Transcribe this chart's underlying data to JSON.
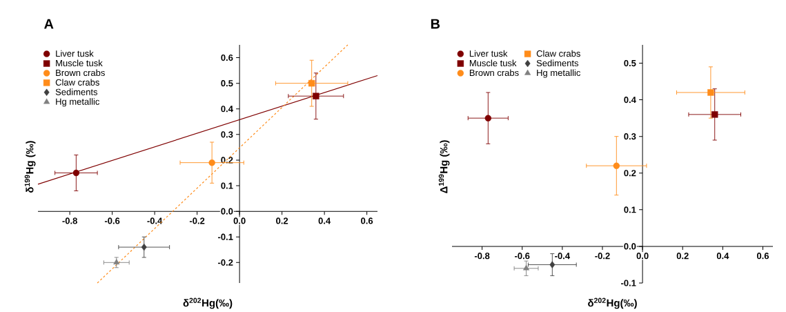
{
  "chart_data": [
    {
      "type": "scatter",
      "title": "A",
      "xlabel": "δ$^{202}$Hg(‰)",
      "ylabel": "δ$^{199}$Hg (‰)",
      "xlim": [
        -0.95,
        0.65
      ],
      "ylim": [
        -0.28,
        0.65
      ],
      "xticks": [
        -0.8,
        -0.6,
        -0.4,
        -0.2,
        {
          "value": 0,
          "label": "0.0"
        },
        0.2,
        0.4,
        0.6
      ],
      "yticks": [
        -0.2,
        -0.1,
        {
          "value": 0,
          "label": "0.0"
        },
        0.1,
        0.2,
        0.3,
        0.4,
        0.5,
        0.6
      ],
      "legend": "top left",
      "series": [
        {
          "type": "line",
          "x": [
            -0.95,
            0.65
          ],
          "values": [
            0.106,
            0.53
          ],
          "color": "#7f0000",
          "line_style": "solid",
          "marker": "none"
        },
        {
          "type": "line",
          "x": [
            -0.67,
            0.51
          ],
          "values": [
            -0.28,
            0.65
          ],
          "color": "#ff8c1a",
          "line_style": "dashed",
          "marker": "none"
        },
        {
          "name": "Liver tusk",
          "color": "#7f0000",
          "marker": "circle",
          "x": [
            -0.77
          ],
          "values": [
            0.15
          ],
          "xerrors": [
            0.1
          ],
          "errors": [
            0.07
          ]
        },
        {
          "name": "Muscle tusk",
          "color": "#7f0000",
          "marker": "square",
          "x": [
            0.36
          ],
          "values": [
            0.45
          ],
          "xerrors": [
            0.13
          ],
          "errors": [
            0.09
          ]
        },
        {
          "name": "Brown crabs",
          "color": "#ff8c1a",
          "marker": "circle",
          "x": [
            -0.13
          ],
          "values": [
            0.19
          ],
          "xerrors": [
            0.15
          ],
          "errors": [
            0.08
          ]
        },
        {
          "name": "Claw crabs",
          "color": "#ff8c1a",
          "marker": "square",
          "x": [
            0.34
          ],
          "values": [
            0.5
          ],
          "xerrors": [
            0.17
          ],
          "errors": [
            0.09
          ]
        },
        {
          "name": "Sediments",
          "color": "#404040",
          "marker": "diamond",
          "x": [
            -0.45
          ],
          "values": [
            -0.14
          ],
          "xerrors": [
            0.12
          ],
          "errors": [
            0.04
          ]
        },
        {
          "name": "Hg metallic",
          "color": "#808080",
          "marker": "triangle",
          "x": [
            -0.58
          ],
          "values": [
            -0.2
          ],
          "xerrors": [
            0.06
          ],
          "errors": [
            0.02
          ]
        }
      ]
    },
    {
      "type": "scatter",
      "title": "B",
      "xlabel": "δ$^{202}$Hg(‰)",
      "ylabel": "Δ$^{199}$Hg (‰)",
      "xlim": [
        -0.95,
        0.65
      ],
      "ylim": [
        -0.1,
        0.55
      ],
      "xticks": [
        -0.8,
        -0.6,
        -0.4,
        -0.2,
        {
          "value": 0,
          "label": "0.0"
        },
        0.2,
        0.4,
        0.6
      ],
      "yticks": [
        -0.1,
        {
          "value": 0,
          "label": "0.0"
        },
        0.1,
        0.2,
        0.3,
        0.4,
        0.5
      ],
      "legend": "top left",
      "series": [
        {
          "name": "Liver tusk",
          "color": "#7f0000",
          "marker": "circle",
          "x": [
            -0.77
          ],
          "values": [
            0.35
          ],
          "xerrors": [
            0.1
          ],
          "errors": [
            0.07
          ]
        },
        {
          "name": "Muscle tusk",
          "color": "#7f0000",
          "marker": "square",
          "x": [
            0.36
          ],
          "values": [
            0.36
          ],
          "xerrors": [
            0.13
          ],
          "errors": [
            0.07
          ]
        },
        {
          "name": "Brown crabs",
          "color": "#ff8c1a",
          "marker": "circle",
          "x": [
            -0.13
          ],
          "values": [
            0.22
          ],
          "xerrors": [
            0.15
          ],
          "errors": [
            0.08
          ]
        },
        {
          "name": "Claw crabs",
          "color": "#ff8c1a",
          "marker": "square",
          "x": [
            0.34
          ],
          "values": [
            0.42
          ],
          "xerrors": [
            0.17
          ],
          "errors": [
            0.07
          ]
        },
        {
          "name": "Sediments",
          "color": "#404040",
          "marker": "diamond",
          "x": [
            -0.45
          ],
          "values": [
            -0.05
          ],
          "xerrors": [
            0.12
          ],
          "errors": [
            0.03
          ]
        },
        {
          "name": "Hg metallic",
          "color": "#808080",
          "marker": "triangle",
          "x": [
            -0.58
          ],
          "values": [
            -0.06
          ],
          "xerrors": [
            0.06
          ],
          "errors": [
            0.02
          ]
        }
      ]
    }
  ]
}
